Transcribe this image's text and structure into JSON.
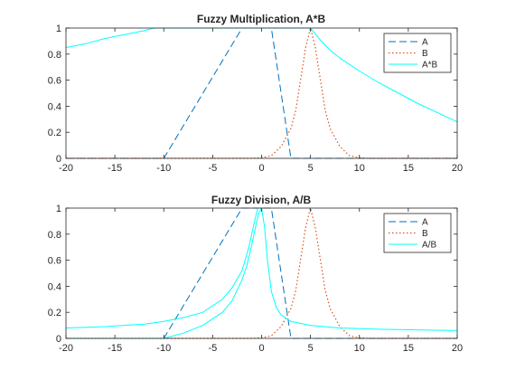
{
  "chart_data": [
    {
      "type": "line",
      "title": "Fuzzy Multiplication, A*B",
      "xlabel": "",
      "ylabel": "",
      "xlim": [
        -20,
        20
      ],
      "ylim": [
        0,
        1
      ],
      "xticks": [
        "-20",
        "-15",
        "-10",
        "-5",
        "0",
        "5",
        "10",
        "15",
        "20"
      ],
      "yticks": [
        "0",
        "0.2",
        "0.4",
        "0.6",
        "0.8",
        "1"
      ],
      "legend_position": "top-right",
      "series": [
        {
          "name": "A",
          "color": "#0072BD",
          "style": "dashed",
          "x": [
            -20,
            -10,
            -2,
            1,
            3,
            20
          ],
          "y": [
            0,
            0,
            1,
            1,
            0,
            0
          ]
        },
        {
          "name": "B",
          "color": "#D95319",
          "style": "dotted",
          "x": [
            -20,
            -1,
            0,
            1,
            2,
            3,
            3.5,
            4,
            4.5,
            5,
            5.5,
            6,
            6.5,
            7,
            8,
            9,
            10,
            11,
            20
          ],
          "y": [
            0,
            0,
            0.004,
            0.02,
            0.09,
            0.23,
            0.37,
            0.61,
            0.85,
            1,
            0.85,
            0.61,
            0.37,
            0.23,
            0.09,
            0.02,
            0.004,
            0,
            0
          ]
        },
        {
          "name": "A*B",
          "color": "#00FFFF",
          "style": "solid",
          "x": [
            -20,
            -18,
            -16,
            -14,
            -12,
            -11,
            -10,
            5,
            6,
            7,
            8,
            10,
            12,
            14,
            16,
            18,
            20
          ],
          "y": [
            0.85,
            0.88,
            0.92,
            0.95,
            0.98,
            1,
            1,
            1,
            0.91,
            0.83,
            0.77,
            0.67,
            0.58,
            0.5,
            0.42,
            0.35,
            0.28
          ]
        }
      ]
    },
    {
      "type": "line",
      "title": "Fuzzy Division, A/B",
      "xlabel": "",
      "ylabel": "",
      "xlim": [
        -20,
        20
      ],
      "ylim": [
        0,
        1
      ],
      "xticks": [
        "-20",
        "-15",
        "-10",
        "-5",
        "0",
        "5",
        "10",
        "15",
        "20"
      ],
      "yticks": [
        "0",
        "0.2",
        "0.4",
        "0.6",
        "0.8",
        "1"
      ],
      "legend_position": "top-right",
      "series": [
        {
          "name": "A",
          "color": "#0072BD",
          "style": "dashed",
          "x": [
            -20,
            -10,
            -2,
            1,
            3,
            20
          ],
          "y": [
            0,
            0,
            1,
            1,
            0,
            0
          ]
        },
        {
          "name": "B",
          "color": "#D95319",
          "style": "dotted",
          "x": [
            -20,
            -1,
            0,
            1,
            2,
            3,
            3.5,
            4,
            4.5,
            5,
            5.5,
            6,
            6.5,
            7,
            8,
            9,
            10,
            11,
            20
          ],
          "y": [
            0,
            0,
            0.004,
            0.02,
            0.09,
            0.23,
            0.37,
            0.61,
            0.85,
            1,
            0.85,
            0.61,
            0.37,
            0.23,
            0.09,
            0.02,
            0.004,
            0,
            0
          ]
        },
        {
          "name": "A/B",
          "color": "#00FFFF",
          "style": "solid",
          "x": [
            -20,
            -16,
            -12,
            -10,
            -8,
            -6,
            -4,
            -3,
            -2,
            -1.3,
            -0.8,
            -0.4,
            0,
            0.3,
            0.6,
            1,
            1.5,
            2,
            3,
            5,
            8,
            12,
            16,
            20
          ],
          "y": [
            0.08,
            0.09,
            0.11,
            0.13,
            0.16,
            0.2,
            0.3,
            0.39,
            0.52,
            0.7,
            0.87,
            1,
            1,
            0.86,
            0.6,
            0.36,
            0.24,
            0.18,
            0.13,
            0.1,
            0.08,
            0.07,
            0.065,
            0.06
          ]
        },
        {
          "name": "",
          "color": "#00FFFF",
          "style": "solid",
          "x": [
            -20,
            -14,
            -10,
            -8,
            -6,
            -4,
            -3,
            -2,
            -1.5,
            -1,
            -0.6,
            -0.3,
            0
          ],
          "y": [
            0,
            0,
            0,
            0.04,
            0.1,
            0.2,
            0.29,
            0.45,
            0.56,
            0.72,
            0.86,
            0.96,
            1
          ]
        }
      ]
    }
  ]
}
